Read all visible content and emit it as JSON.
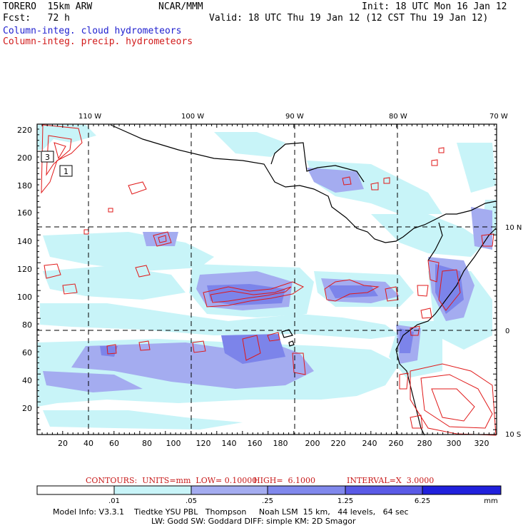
{
  "header": {
    "model": "TORERO  15km ARW",
    "org": "NCAR/MMM",
    "init": "Init: 18 UTC Mon 16 Jan 12",
    "fcst": "Fcst:   72 h",
    "valid": "Valid: 18 UTC Thu 19 Jan 12 (12 CST Thu 19 Jan 12)",
    "field_cloud": "Column-integ. cloud hydrometeors",
    "field_precip": "Column-integ. precip. hydrometeors"
  },
  "map": {
    "lon_labels": [
      "110 W",
      "100 W",
      "90 W",
      "80 W",
      "70 W"
    ],
    "lat_labels": [
      "10 N",
      "0",
      "10 S"
    ],
    "x_ticks": [
      "20",
      "40",
      "60",
      "80",
      "100",
      "120",
      "140",
      "160",
      "180",
      "200",
      "220",
      "240",
      "260",
      "280",
      "300",
      "320"
    ],
    "y_ticks": [
      "220",
      "200",
      "180",
      "160",
      "140",
      "120",
      "100",
      "80",
      "60",
      "40",
      "20"
    ],
    "boxes": [
      "3",
      "1"
    ]
  },
  "contours": {
    "units": "CONTOURS:  UNITS=mm  LOW= 0.10000",
    "high": "HIGH=  6.1000",
    "interval": "INTERVAL=X  3.0000"
  },
  "colorbar": {
    "labels": [
      ".01",
      ".05",
      ".25",
      "1.25",
      "6.25"
    ],
    "unit": "mm",
    "colors": [
      "#ffffff",
      "#c8f4f8",
      "#a4acf0",
      "#8088ec",
      "#5a5ae6",
      "#3030e0",
      "#1414d8"
    ]
  },
  "footer": {
    "line1": "Model Info: V3.3.1    Tiedtke YSU PBL   Thompson     Noah LSM  15 km,   44 levels,   64 sec",
    "line2": "LW: Godd SW: Goddard DIFF: simple KM: 2D Smagor"
  }
}
